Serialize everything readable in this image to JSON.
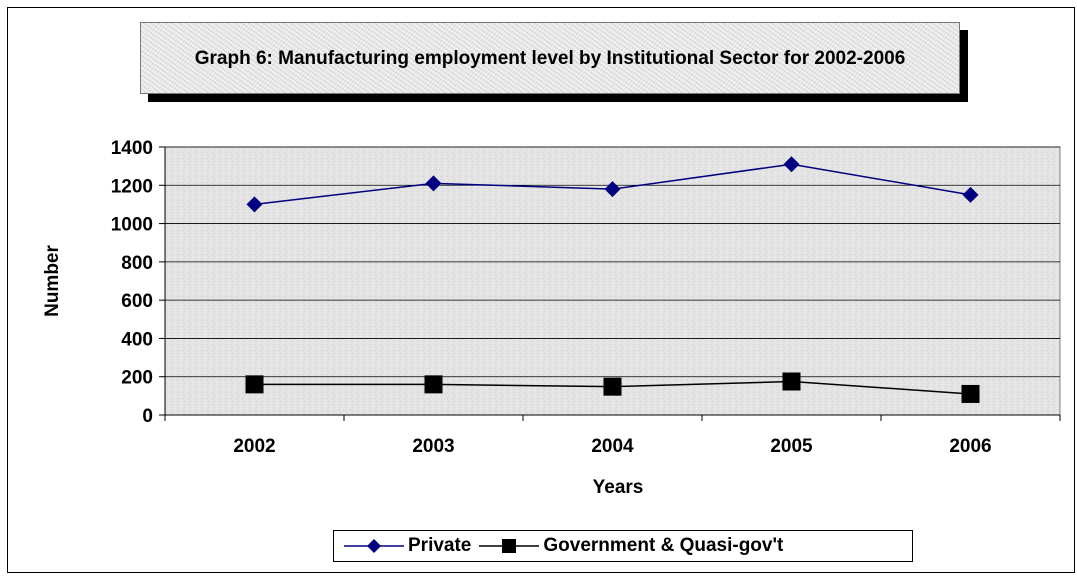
{
  "chart_data": {
    "type": "line",
    "title": "Graph 6: Manufacturing employment level by Institutional Sector for 2002-2006",
    "xlabel": "Years",
    "ylabel": "Number",
    "categories": [
      "2002",
      "2003",
      "2004",
      "2005",
      "2006"
    ],
    "ylim": [
      0,
      1400
    ],
    "yticks": [
      "0",
      "200",
      "400",
      "600",
      "800",
      "1000",
      "1200",
      "1400"
    ],
    "grid": true,
    "legend_position": "bottom",
    "series": [
      {
        "name": "Private",
        "values": [
          1100,
          1210,
          1180,
          1310,
          1150
        ],
        "color": "#000080",
        "marker": "diamond"
      },
      {
        "name": "Government & Quasi-gov't",
        "values": [
          160,
          160,
          148,
          175,
          110
        ],
        "color": "#000000",
        "marker": "square"
      }
    ]
  }
}
